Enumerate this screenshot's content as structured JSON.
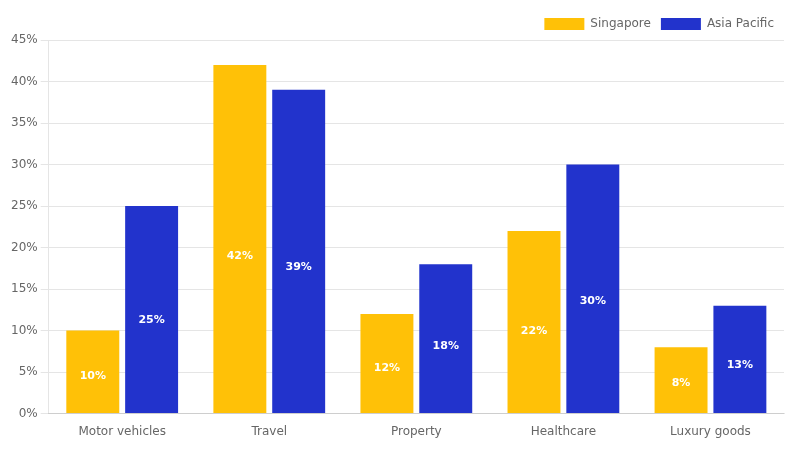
{
  "chart_data": {
    "type": "bar",
    "categories": [
      "Motor vehicles",
      "Travel",
      "Property",
      "Healthcare",
      "Luxury goods"
    ],
    "series": [
      {
        "name": "Singapore",
        "color": "#FFC107",
        "values": [
          10,
          42,
          12,
          22,
          8
        ],
        "value_labels": [
          "10%",
          "42%",
          "12%",
          "22%",
          "8%"
        ]
      },
      {
        "name": "Asia Pacific",
        "color": "#2233CC",
        "values": [
          25,
          39,
          18,
          30,
          13
        ],
        "value_labels": [
          "25%",
          "39%",
          "18%",
          "30%",
          "13%"
        ]
      }
    ],
    "ylim": [
      0,
      45
    ],
    "yticks": [
      {
        "value": 0,
        "label": "0%"
      },
      {
        "value": 5,
        "label": "5%"
      },
      {
        "value": 10,
        "label": "10%"
      },
      {
        "value": 15,
        "label": "15%"
      },
      {
        "value": 20,
        "label": "20%"
      },
      {
        "value": 25,
        "label": "25%"
      },
      {
        "value": 30,
        "label": "30%"
      },
      {
        "value": 35,
        "label": "35%"
      },
      {
        "value": 40,
        "label": "40%"
      },
      {
        "value": 45,
        "label": "45%"
      }
    ],
    "grid": true,
    "legend": "upper right",
    "data_labels": true
  }
}
